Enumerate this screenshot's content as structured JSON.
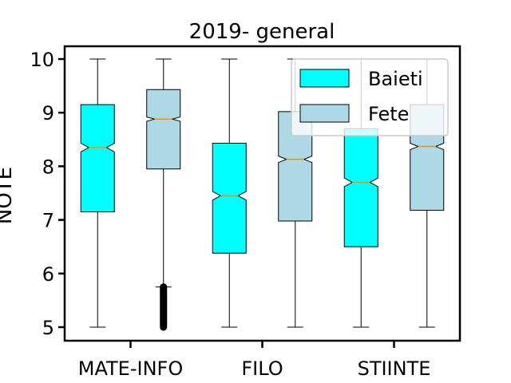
{
  "chart_data": {
    "type": "boxplot",
    "title": "2019- general",
    "xlabel": "",
    "ylabel": "NOTE",
    "ylim": [
      4.75,
      10.25
    ],
    "yticks": [
      "5",
      "6",
      "7",
      "8",
      "9",
      "10"
    ],
    "categories": [
      "MATE-INFO",
      "FILO",
      "STIINTE"
    ],
    "notched": true,
    "legend_position": "top-right",
    "median_color": "#ff8c00",
    "series": [
      {
        "name": "Baieti",
        "color": "#00ffff",
        "boxes": [
          {
            "whislo": 5.0,
            "q1": 7.15,
            "med": 8.35,
            "q3": 9.15,
            "whishi": 10.0,
            "notch_lo": 8.27,
            "notch_hi": 8.43
          },
          {
            "whislo": 5.0,
            "q1": 6.38,
            "med": 7.45,
            "q3": 8.43,
            "whishi": 10.0,
            "notch_lo": 7.37,
            "notch_hi": 7.53
          },
          {
            "whislo": 5.0,
            "q1": 6.5,
            "med": 7.7,
            "q3": 8.7,
            "whishi": 10.0,
            "notch_lo": 7.62,
            "notch_hi": 7.78
          }
        ]
      },
      {
        "name": "Fete",
        "color": "#add8e6",
        "boxes": [
          {
            "whislo": 5.75,
            "q1": 7.95,
            "med": 8.88,
            "q3": 9.43,
            "whishi": 10.0,
            "notch_lo": 8.84,
            "notch_hi": 8.92,
            "fliers_range": [
              5.0,
              5.75
            ]
          },
          {
            "whislo": 5.0,
            "q1": 6.98,
            "med": 8.13,
            "q3": 9.02,
            "whishi": 10.0,
            "notch_lo": 8.07,
            "notch_hi": 8.19
          },
          {
            "whislo": 5.0,
            "q1": 7.18,
            "med": 8.37,
            "q3": 9.15,
            "whishi": 10.0,
            "notch_lo": 8.31,
            "notch_hi": 8.43
          }
        ]
      }
    ]
  }
}
